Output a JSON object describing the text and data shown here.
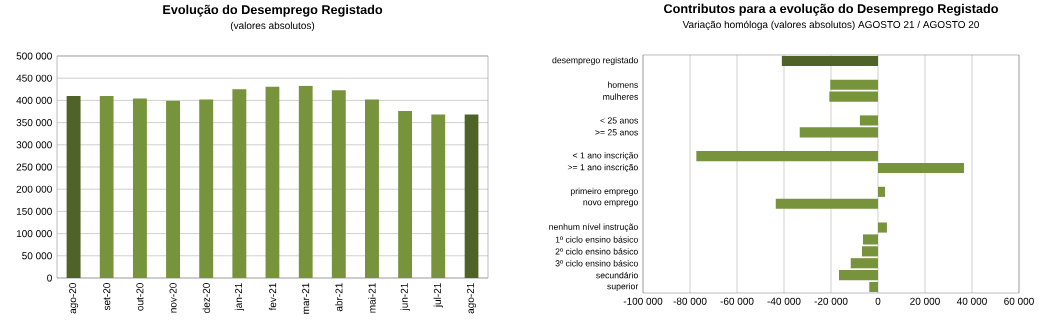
{
  "chart_data": [
    {
      "type": "bar",
      "title": "Evolução do Desemprego Registado",
      "subtitle": "(valores absolutos)",
      "categories": [
        "ago-20",
        "set-20",
        "out-20",
        "nov-20",
        "dez-20",
        "jan-21",
        "fev-21",
        "mar-21",
        "abr-21",
        "mai-21",
        "jun-21",
        "jul-21",
        "ago-21"
      ],
      "values": [
        410000,
        410000,
        404000,
        399000,
        402000,
        425000,
        431000,
        433000,
        423000,
        402000,
        376000,
        368000,
        368000
      ],
      "colors": [
        "#4f6228",
        "#77933c",
        "#77933c",
        "#77933c",
        "#77933c",
        "#77933c",
        "#77933c",
        "#77933c",
        "#77933c",
        "#77933c",
        "#77933c",
        "#77933c",
        "#4f6228"
      ],
      "ylim": [
        0,
        500000
      ],
      "yticks": [
        0,
        {
          "value": 50000,
          "label": "50 000"
        },
        {
          "value": 100000,
          "label": "100 000"
        },
        {
          "value": 150000,
          "label": "150 000"
        },
        {
          "value": 200000,
          "label": "200 000"
        },
        {
          "value": 250000,
          "label": "250 000"
        },
        {
          "value": 300000,
          "label": "300 000"
        },
        {
          "value": 350000,
          "label": "350 000"
        },
        {
          "value": 400000,
          "label": "400 000"
        },
        {
          "value": 450000,
          "label": "450 000"
        },
        {
          "value": 500000,
          "label": "500 000"
        }
      ],
      "grid": "y"
    },
    {
      "type": "bar",
      "orientation": "horizontal",
      "title": "Contributos para a evolução do Desemprego Registado",
      "subtitle": "Variação homóloga (valores absolutos)   AGOSTO 21 / AGOSTO 20",
      "categories": [
        "desemprego registado",
        null,
        "homens",
        "mulheres",
        null,
        "< 25 anos",
        ">= 25 anos",
        null,
        "< 1 ano inscrição",
        ">= 1 ano inscrição",
        null,
        "primeiro emprego",
        "novo emprego",
        null,
        "nenhum nível instrução",
        "1º ciclo ensino básico",
        "2º ciclo ensino básico",
        "3º ciclo ensino básico",
        "secundário",
        "superior"
      ],
      "values": [
        -41000,
        null,
        -20300,
        -20700,
        null,
        -7700,
        -33300,
        null,
        -77300,
        36600,
        null,
        3000,
        -43500,
        null,
        3800,
        -6400,
        -6800,
        -11600,
        -16600,
        -3700
      ],
      "colors": [
        "#4f6228",
        null,
        "#77933c",
        "#77933c",
        null,
        "#77933c",
        "#77933c",
        null,
        "#77933c",
        "#77933c",
        null,
        "#77933c",
        "#77933c",
        null,
        "#77933c",
        "#77933c",
        "#77933c",
        "#77933c",
        "#77933c",
        "#77933c"
      ],
      "xlim": [
        -100000,
        60000
      ],
      "xticks": [
        {
          "value": -100000,
          "label": "-100 000"
        },
        {
          "value": -80000,
          "label": "-80 000"
        },
        {
          "value": -60000,
          "label": "-60 000"
        },
        {
          "value": -40000,
          "label": "-40 000"
        },
        {
          "value": -20000,
          "label": "-20 000"
        },
        0,
        {
          "value": 20000,
          "label": "20 000"
        },
        {
          "value": 40000,
          "label": "40 000"
        },
        {
          "value": 60000,
          "label": "60 000"
        }
      ],
      "grid": "x"
    }
  ]
}
